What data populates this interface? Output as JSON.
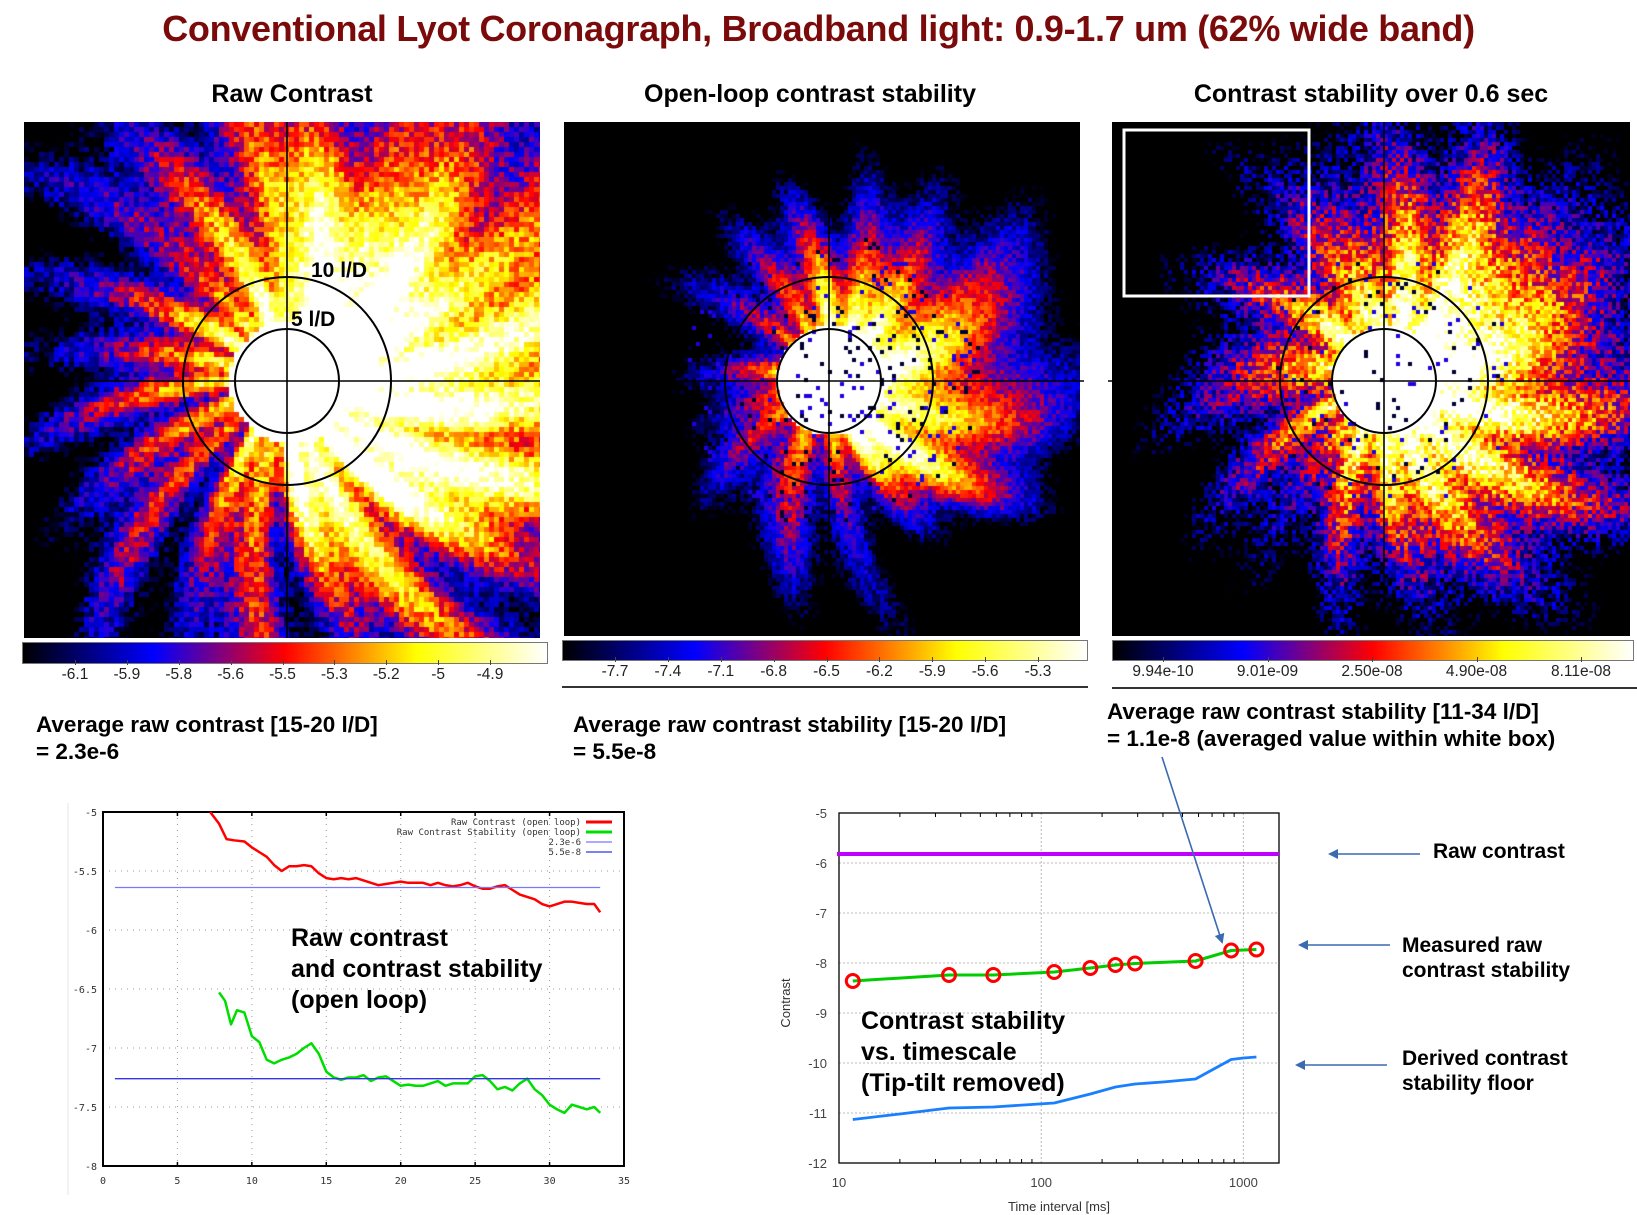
{
  "page": {
    "title": "Conventional Lyot Coronagraph, Broadband light: 0.9-1.7 um (62% wide band)"
  },
  "panels": [
    {
      "title": "Raw Contrast",
      "ring_labels": [
        "10 l/D",
        "5 l/D"
      ],
      "colorbar_ticks": [
        "-6.1",
        "-5.9",
        "-5.8",
        "-5.6",
        "-5.5",
        "-5.3",
        "-5.2",
        "-5",
        "-4.9"
      ],
      "caption": "Average raw contrast [15-20 l/D]\n= 2.3e-6",
      "has_white_box": false
    },
    {
      "title": "Open-loop contrast stability",
      "ring_labels": [],
      "colorbar_ticks": [
        "-7.7",
        "-7.4",
        "-7.1",
        "-6.8",
        "-6.5",
        "-6.2",
        "-5.9",
        "-5.6",
        "-5.3"
      ],
      "caption": "Average raw contrast stability [15-20 l/D]\n= 5.5e-8",
      "has_white_box": false
    },
    {
      "title": "Contrast stability over 0.6 sec",
      "ring_labels": [],
      "colorbar_ticks": [
        "9.94e-10",
        "9.01e-09",
        "2.50e-08",
        "4.90e-08",
        "8.11e-08"
      ],
      "caption": "Average raw contrast stability [11-34 l/D]\n= 1.1e-8 (averaged value within white box)",
      "has_white_box": true
    }
  ],
  "colors": {
    "title": "#7b0a0a",
    "colormap": [
      "#000000",
      "#0000ff",
      "#ff0000",
      "#ffff00",
      "#ffffff"
    ],
    "red_series": "#ff0000",
    "green_series": "#00dd00",
    "blue_ref": "#4a4aff",
    "magenta": "#c000ff",
    "floor_blue": "#1a7fff",
    "arrow": "#3a6ab0"
  },
  "chart_data": [
    {
      "type": "line",
      "title": "",
      "overlay_text": "Raw contrast\nand contrast stability\n(open loop)",
      "xlabel": "",
      "ylabel": "",
      "xlim": [
        0,
        35
      ],
      "ylim": [
        -8,
        -5
      ],
      "xticks": [
        "0",
        "5",
        "10",
        "15",
        "20",
        "25",
        "30",
        "35"
      ],
      "yticks": [
        "-5",
        "-5.5",
        "-6",
        "-6.5",
        "-7",
        "-7.5",
        "-8"
      ],
      "grid": true,
      "legend_position": "top-right",
      "series": [
        {
          "name": "Raw Contrast (open loop)",
          "color": "#ff0000",
          "x": [
            7.2,
            7.8,
            8.3,
            8.8,
            9.5,
            10.0,
            10.5,
            11.0,
            11.5,
            12.0,
            12.5,
            13.0,
            13.5,
            14.0,
            14.5,
            15.0,
            15.5,
            16.0,
            16.5,
            17.0,
            17.5,
            18.0,
            18.5,
            19.0,
            19.5,
            20.0,
            20.5,
            21.0,
            21.5,
            22.0,
            22.5,
            23.0,
            23.5,
            24.0,
            24.5,
            25.0,
            25.5,
            26.0,
            26.5,
            27.0,
            27.5,
            28.0,
            28.5,
            29.0,
            29.5,
            30.0,
            30.5,
            31.0,
            31.5,
            32.0,
            32.5,
            33.0,
            33.4
          ],
          "values": [
            -5.0,
            -5.1,
            -5.23,
            -5.24,
            -5.25,
            -5.3,
            -5.34,
            -5.38,
            -5.45,
            -5.5,
            -5.46,
            -5.46,
            -5.45,
            -5.46,
            -5.52,
            -5.56,
            -5.57,
            -5.56,
            -5.57,
            -5.56,
            -5.58,
            -5.6,
            -5.62,
            -5.61,
            -5.6,
            -5.59,
            -5.6,
            -5.6,
            -5.6,
            -5.62,
            -5.6,
            -5.62,
            -5.63,
            -5.62,
            -5.6,
            -5.63,
            -5.65,
            -5.65,
            -5.63,
            -5.62,
            -5.66,
            -5.7,
            -5.72,
            -5.74,
            -5.78,
            -5.8,
            -5.78,
            -5.76,
            -5.76,
            -5.77,
            -5.78,
            -5.78,
            -5.85
          ]
        },
        {
          "name": "Raw Contrast Stability (open loop)",
          "color": "#00dd00",
          "x": [
            7.8,
            8.2,
            8.6,
            9.0,
            9.5,
            10.0,
            10.5,
            11.0,
            11.5,
            12.0,
            12.5,
            13.0,
            13.5,
            14.0,
            14.5,
            15.0,
            15.5,
            16.0,
            16.5,
            17.0,
            17.5,
            18.0,
            18.5,
            19.0,
            19.5,
            20.0,
            20.5,
            21.0,
            21.5,
            22.0,
            22.5,
            23.0,
            23.5,
            24.0,
            24.5,
            25.0,
            25.5,
            26.0,
            26.5,
            27.0,
            27.5,
            28.0,
            28.5,
            29.0,
            29.5,
            30.0,
            30.5,
            31.0,
            31.5,
            32.0,
            32.5,
            33.0,
            33.4
          ],
          "values": [
            -6.53,
            -6.6,
            -6.8,
            -6.68,
            -6.7,
            -6.9,
            -6.95,
            -7.1,
            -7.13,
            -7.1,
            -7.08,
            -7.05,
            -7.0,
            -6.96,
            -7.05,
            -7.2,
            -7.25,
            -7.27,
            -7.25,
            -7.25,
            -7.23,
            -7.28,
            -7.25,
            -7.24,
            -7.28,
            -7.32,
            -7.31,
            -7.32,
            -7.32,
            -7.3,
            -7.28,
            -7.32,
            -7.3,
            -7.3,
            -7.3,
            -7.24,
            -7.23,
            -7.28,
            -7.35,
            -7.33,
            -7.36,
            -7.3,
            -7.26,
            -7.35,
            -7.4,
            -7.48,
            -7.52,
            -7.55,
            -7.48,
            -7.5,
            -7.52,
            -7.5,
            -7.55
          ]
        },
        {
          "name": "2.3e-6",
          "color": "#7777ff",
          "x": [
            0.8,
            33.4
          ],
          "values": [
            -5.64,
            -5.64
          ]
        },
        {
          "name": "5.5e-8",
          "color": "#3333ee",
          "x": [
            0.8,
            33.4
          ],
          "values": [
            -7.26,
            -7.26
          ]
        }
      ]
    },
    {
      "type": "line",
      "title": "",
      "overlay_text": "Contrast stability\nvs. timescale\n(Tip-tilt removed)",
      "xlabel": "Time interval [ms]",
      "ylabel": "Contrast",
      "xscale": "log",
      "xlim": [
        10,
        1500
      ],
      "ylim": [
        -12,
        -5
      ],
      "xticks": [
        "10",
        "100",
        "1000"
      ],
      "yticks": [
        "-5",
        "-6",
        "-7",
        "-8",
        "-9",
        "-10",
        "-11",
        "-12"
      ],
      "grid": true,
      "series": [
        {
          "name": "Raw contrast",
          "color": "#c000ff",
          "x": [
            10,
            1500
          ],
          "values": [
            -5.82,
            -5.82
          ]
        },
        {
          "name": "Measured raw contrast stability",
          "color": "#00cc00",
          "marker": "circle",
          "marker_color": "#ff0000",
          "x": [
            11.7,
            35,
            58,
            116,
            175,
            233,
            291,
            580,
            870,
            1160
          ],
          "values": [
            -8.36,
            -8.24,
            -8.24,
            -8.18,
            -8.1,
            -8.04,
            -8.01,
            -7.96,
            -7.75,
            -7.73
          ]
        },
        {
          "name": "Derived contrast stability floor",
          "color": "#1a7fff",
          "x": [
            11.7,
            20,
            35,
            58,
            116,
            175,
            233,
            291,
            400,
            580,
            870,
            1000,
            1160
          ],
          "values": [
            -11.13,
            -11.02,
            -10.9,
            -10.88,
            -10.8,
            -10.62,
            -10.48,
            -10.42,
            -10.38,
            -10.32,
            -9.93,
            -9.9,
            -9.88
          ]
        }
      ],
      "annotations": [
        "Raw contrast",
        "Measured raw\ncontrast stability",
        "Derived contrast\nstability floor"
      ]
    }
  ]
}
